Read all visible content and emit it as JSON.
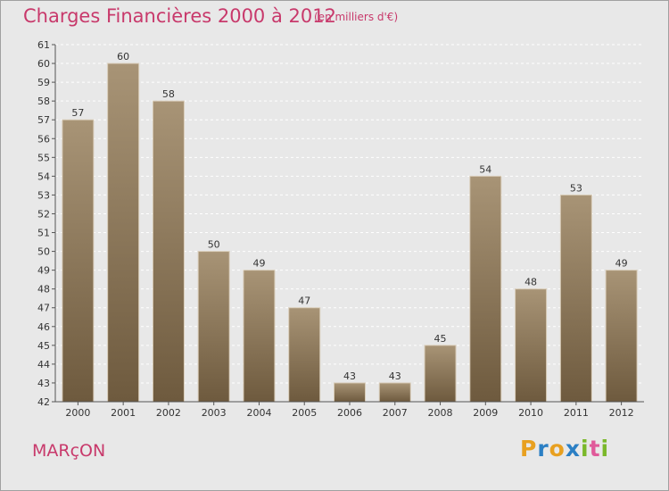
{
  "title": "Charges Financières 2000 à 2012",
  "subtitle": "(en milliers d'€)",
  "place": "MARçON",
  "logo": {
    "letters": [
      "P",
      "r",
      "o",
      "x",
      "i",
      "t",
      "i"
    ],
    "colors": [
      "#e8a020",
      "#2b7fc4",
      "#e8a020",
      "#2b7fc4",
      "#7ab82a",
      "#e05a9a",
      "#7ab82a"
    ]
  },
  "chart_data": {
    "type": "bar",
    "categories": [
      "2000",
      "2001",
      "2002",
      "2003",
      "2004",
      "2005",
      "2006",
      "2007",
      "2008",
      "2009",
      "2010",
      "2011",
      "2012"
    ],
    "values": [
      57,
      60,
      58,
      50,
      49,
      47,
      43,
      43,
      45,
      54,
      48,
      53,
      49
    ],
    "ylim": [
      42,
      61
    ],
    "yticks": [
      42,
      43,
      44,
      45,
      46,
      47,
      48,
      49,
      50,
      51,
      52,
      53,
      54,
      55,
      56,
      57,
      58,
      59,
      60,
      61
    ],
    "grid": true,
    "bar_color": "#8b7556"
  }
}
